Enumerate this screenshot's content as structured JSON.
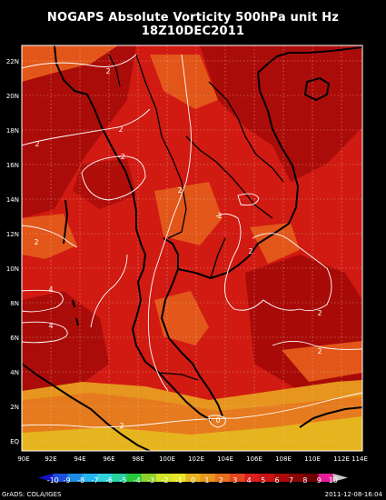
{
  "map": {
    "title_line1": "NOGAPS Absolute Vorticity 500hPa unit Hz",
    "title_line2": "18Z10DEC2011",
    "lat_labels": [
      "22N",
      "20N",
      "18N",
      "16N",
      "14N",
      "12N",
      "10N",
      "8N",
      "6N",
      "4N",
      "2N",
      "EQ"
    ],
    "lon_labels": [
      "90E",
      "92E",
      "94E",
      "96E",
      "98E",
      "100E",
      "102E",
      "104E",
      "106E",
      "108E",
      "110E",
      "112E",
      "114E"
    ],
    "contour_labels": [
      "2",
      "2",
      "2",
      "-2",
      "2",
      "2",
      "2",
      "4",
      "2",
      "2",
      "2",
      "4",
      "2",
      "4",
      "2",
      "2",
      "2",
      "0",
      "0"
    ],
    "colorbar": {
      "labels": [
        "-10",
        "-9",
        "-8",
        "-7",
        "-6",
        "-5",
        "-4",
        "-3",
        "-2",
        "-1",
        "0",
        "1",
        "2",
        "3",
        "4",
        "5",
        "6",
        "7",
        "8",
        "9",
        "10"
      ],
      "colors": [
        "#1414c8",
        "#1e50dc",
        "#1e8ce6",
        "#28b4f0",
        "#32d2dc",
        "#28d2a0",
        "#28c83c",
        "#8cd228",
        "#d2e628",
        "#e6e628",
        "#e6b41e",
        "#e6961e",
        "#e66e1e",
        "#e6461e",
        "#dc1e1e",
        "#c81414",
        "#aa0a0a",
        "#8c0505",
        "#6e0000",
        "#e61e96",
        "#aa14aa"
      ]
    },
    "credit_left": "GrADS: COLA/IGES",
    "credit_right": "2011-12-08-16:04"
  }
}
